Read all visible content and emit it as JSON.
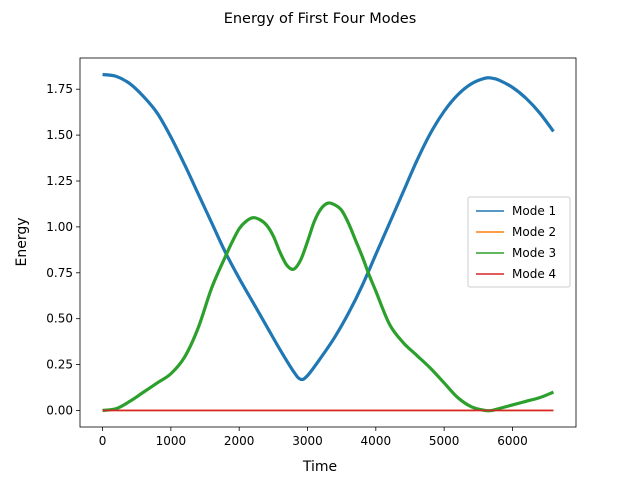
{
  "chart_data": {
    "type": "line",
    "title": "Energy of First Four Modes",
    "xlabel": "Time",
    "ylabel": "Energy",
    "xlim": [
      -330,
      6930
    ],
    "ylim": [
      -0.09,
      1.92
    ],
    "xticks": [
      0,
      1000,
      2000,
      3000,
      4000,
      5000,
      6000
    ],
    "xtick_labels": [
      "0",
      "1000",
      "2000",
      "3000",
      "4000",
      "5000",
      "6000"
    ],
    "yticks": [
      0.0,
      0.25,
      0.5,
      0.75,
      1.0,
      1.25,
      1.5,
      1.75
    ],
    "ytick_labels": [
      "0.00",
      "0.25",
      "0.50",
      "0.75",
      "1.00",
      "1.25",
      "1.50",
      "1.75"
    ],
    "grid": false,
    "legend": "center-right",
    "series": [
      {
        "name": "Mode 1",
        "color": "#1f77b4",
        "x": [
          0,
          200,
          400,
          600,
          800,
          1000,
          1200,
          1400,
          1600,
          1800,
          2000,
          2200,
          2400,
          2600,
          2800,
          2900,
          3000,
          3200,
          3400,
          3600,
          3800,
          4000,
          4200,
          4400,
          4600,
          4800,
          5000,
          5200,
          5400,
          5600,
          5700,
          5800,
          6000,
          6200,
          6400,
          6600
        ],
        "values": [
          1.83,
          1.82,
          1.78,
          1.71,
          1.62,
          1.49,
          1.34,
          1.18,
          1.02,
          0.86,
          0.72,
          0.59,
          0.46,
          0.33,
          0.21,
          0.17,
          0.19,
          0.29,
          0.4,
          0.53,
          0.68,
          0.85,
          1.02,
          1.19,
          1.36,
          1.51,
          1.63,
          1.72,
          1.78,
          1.81,
          1.81,
          1.8,
          1.76,
          1.7,
          1.62,
          1.52
        ]
      },
      {
        "name": "Mode 2",
        "color": "#ff7f0e",
        "x": [
          0,
          6600
        ],
        "values": [
          0.0,
          0.0
        ]
      },
      {
        "name": "Mode 3",
        "color": "#2ca02c",
        "x": [
          0,
          200,
          400,
          600,
          800,
          1000,
          1200,
          1400,
          1600,
          1800,
          1900,
          2000,
          2100,
          2200,
          2300,
          2400,
          2500,
          2600,
          2700,
          2800,
          2900,
          3000,
          3100,
          3200,
          3300,
          3400,
          3500,
          3600,
          3700,
          3800,
          3900,
          4000,
          4200,
          4400,
          4600,
          4800,
          5000,
          5200,
          5400,
          5600,
          5700,
          5800,
          6000,
          6200,
          6400,
          6600
        ],
        "values": [
          0.0,
          0.01,
          0.05,
          0.1,
          0.15,
          0.2,
          0.29,
          0.45,
          0.67,
          0.84,
          0.92,
          0.99,
          1.03,
          1.05,
          1.04,
          1.01,
          0.95,
          0.86,
          0.79,
          0.77,
          0.82,
          0.92,
          1.03,
          1.1,
          1.13,
          1.12,
          1.09,
          1.02,
          0.93,
          0.84,
          0.74,
          0.65,
          0.47,
          0.37,
          0.3,
          0.23,
          0.15,
          0.07,
          0.02,
          0.0,
          0.0,
          0.01,
          0.03,
          0.05,
          0.07,
          0.1
        ]
      },
      {
        "name": "Mode 4",
        "color": "#d62728",
        "x": [
          0,
          6600
        ],
        "values": [
          0.0,
          0.0
        ]
      }
    ]
  }
}
